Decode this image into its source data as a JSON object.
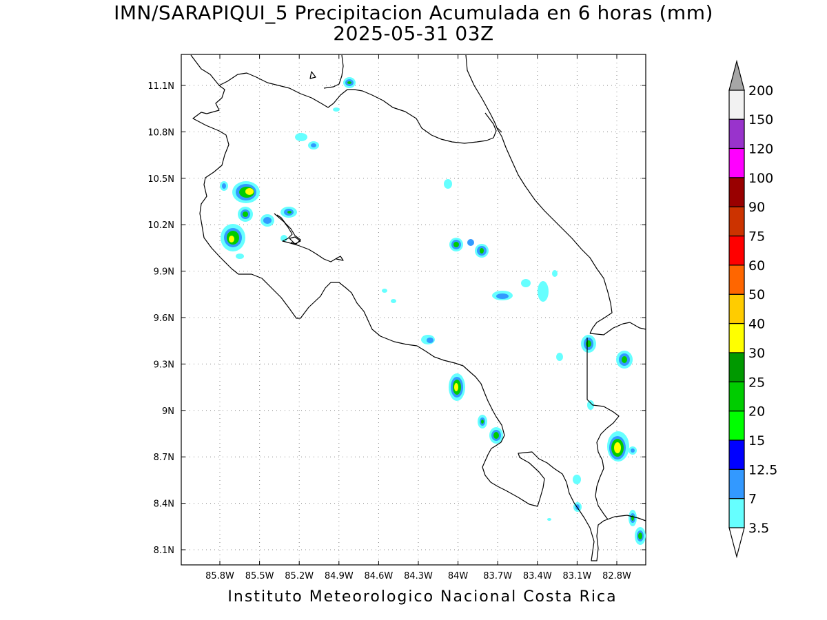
{
  "title_line1": "IMN/SARAPIQUI_5 Precipitacion Acumulada en 6 horas (mm)",
  "title_line2": "2025-05-31 03Z",
  "credit": "Instituto Meteorologico Nacional Costa Rica",
  "lon_ticks": [
    "85.8W",
    "85.5W",
    "85.2W",
    "84.9W",
    "84.6W",
    "84.3W",
    "84W",
    "83.7W",
    "83.4W",
    "83.1W",
    "82.8W"
  ],
  "lat_ticks": [
    "11.1N",
    "10.8N",
    "10.5N",
    "10.2N",
    "9.9N",
    "9.6N",
    "9.3N",
    "9N",
    "8.7N",
    "8.4N",
    "8.1N"
  ],
  "colorbar": {
    "levels": [
      "3.5",
      "7",
      "12.5",
      "15",
      "20",
      "25",
      "30",
      "40",
      "50",
      "60",
      "75",
      "90",
      "100",
      "120",
      "150",
      "200"
    ],
    "colors": [
      "#ffffff",
      "#66ffff",
      "#3399ff",
      "#0000ff",
      "#00ff00",
      "#00cc00",
      "#009900",
      "#ffff00",
      "#ffcc00",
      "#ff6600",
      "#ff0000",
      "#cc3300",
      "#990000",
      "#ff00ff",
      "#9933cc",
      "#f2f2f2",
      "#a6a6a6"
    ]
  }
}
